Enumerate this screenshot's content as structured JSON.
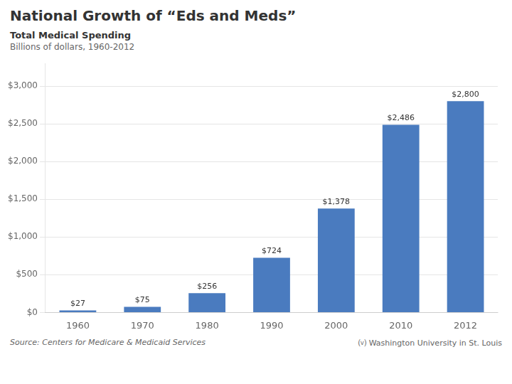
{
  "chart_data": {
    "type": "bar",
    "title": "National Growth of “Eds and Meds”",
    "subtitle": [
      "Total Medical Spending",
      "Billions of dollars, 1960-2012"
    ],
    "annotations": [
      "Source: Centers for Medicare & Medicaid Services",
      "⒱ Washington University in St. Louis"
    ],
    "categories": [
      "1960",
      "1970",
      "1980",
      "1990",
      "2000",
      "2010",
      "2012"
    ],
    "values": [
      27,
      75,
      256,
      724,
      1378,
      2486,
      2800
    ],
    "value_labels": [
      "$27",
      "$75",
      "$256",
      "$724",
      "$1,378",
      "$2,486",
      "$2,800"
    ],
    "data_labels": true,
    "color": "#4a7bbf",
    "ylim": [
      0,
      3300
    ],
    "yticks": [
      {
        "value": 0,
        "label": "$0"
      },
      {
        "value": 500,
        "label": "$500"
      },
      {
        "value": 1000,
        "label": "$1,000"
      },
      {
        "value": 1500,
        "label": "$1,500"
      },
      {
        "value": 2000,
        "label": "$2,000"
      },
      {
        "value": 2500,
        "label": "$2,500"
      },
      {
        "value": 3000,
        "label": "$3,000"
      }
    ],
    "grid": true
  }
}
